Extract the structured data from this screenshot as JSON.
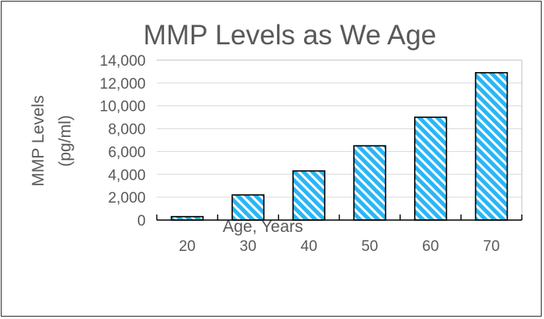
{
  "chart_data": {
    "type": "bar",
    "title": "MMP Levels as We Age",
    "xlabel": "Age, Years",
    "ylabel_lines": [
      "MMP Levels",
      "(pg/ml)"
    ],
    "categories": [
      "20",
      "30",
      "40",
      "50",
      "60",
      "70"
    ],
    "values": [
      300,
      2200,
      4300,
      6500,
      9000,
      12900
    ],
    "ylim": [
      0,
      14000
    ],
    "yticks": [
      {
        "value": 0,
        "label": "0"
      },
      {
        "value": 2000,
        "label": "2,000"
      },
      {
        "value": 4000,
        "label": "4,000"
      },
      {
        "value": 6000,
        "label": "6,000"
      },
      {
        "value": 8000,
        "label": "8,000"
      },
      {
        "value": 10000,
        "label": "10,000"
      },
      {
        "value": 12000,
        "label": "12,000"
      },
      {
        "value": 14000,
        "label": "14,000"
      }
    ],
    "grid": true,
    "legend": "none",
    "bar_fill": "#29b6f6",
    "bar_stripe": "#ffffff",
    "bar_stroke": "#000000",
    "grid_color": "#d9d9d9",
    "text_color": "#595959"
  }
}
